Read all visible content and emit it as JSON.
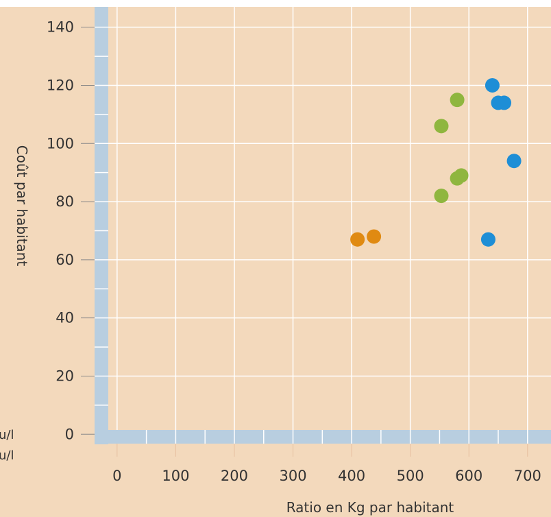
{
  "chart_data": {
    "type": "scatter",
    "title": "",
    "xlabel": "Ratio en Kg par habitant",
    "ylabel": "Coût par habitant",
    "xlim": [
      -15,
      740
    ],
    "ylim": [
      -3,
      147
    ],
    "xticks": [
      "0",
      "100",
      "200",
      "300",
      "400",
      "500",
      "600",
      "700"
    ],
    "yticks": [
      "0",
      "20",
      "40",
      "60",
      "80",
      "100",
      "120",
      "140"
    ],
    "grid": true,
    "legend": "none",
    "series": [
      {
        "color": "#e08a12",
        "points": [
          [
            410,
            67
          ],
          [
            438,
            68
          ]
        ]
      },
      {
        "color": "#8fb63f",
        "points": [
          [
            553,
            106
          ],
          [
            580,
            115
          ],
          [
            553,
            82
          ],
          [
            580,
            88
          ],
          [
            587,
            89
          ]
        ]
      },
      {
        "color": "#1e8ed6",
        "points": [
          [
            640,
            120
          ],
          [
            650,
            114
          ],
          [
            660,
            114
          ],
          [
            677,
            94
          ],
          [
            633,
            67
          ]
        ]
      }
    ]
  },
  "edge_fragments": [
    "u/l",
    "u/l"
  ],
  "colors": {
    "plot_background": "#f3d9bc",
    "axis_bar": "#b8cee0",
    "grid": "#ffffff"
  }
}
